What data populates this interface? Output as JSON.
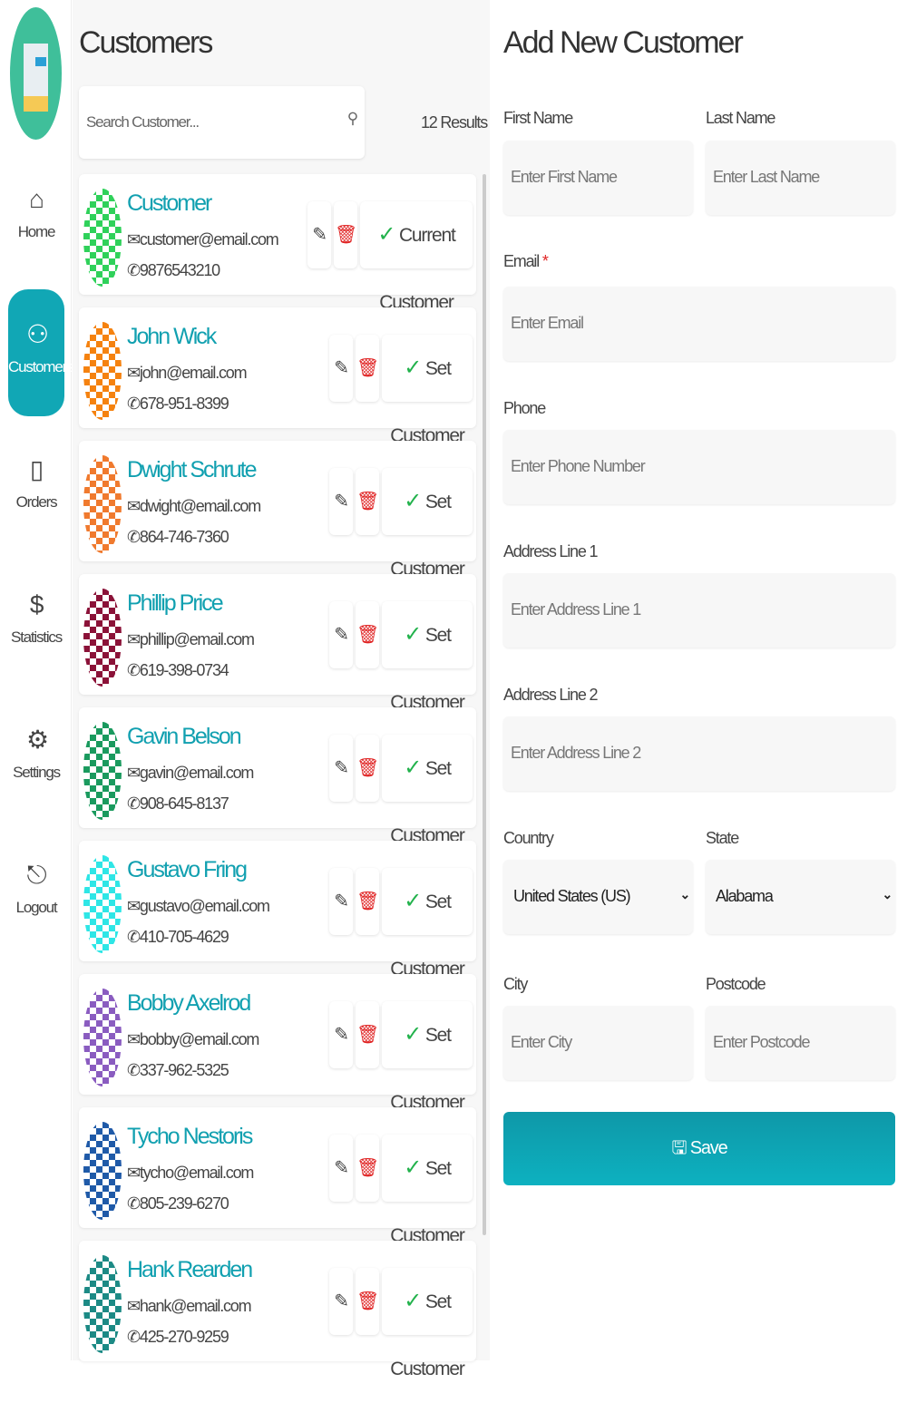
{
  "sidebar": {
    "items": [
      {
        "label": "Home",
        "icon": "home-icon"
      },
      {
        "label": "Customers",
        "icon": "users-icon",
        "active": true
      },
      {
        "label": "Orders",
        "icon": "clipboard-icon"
      },
      {
        "label": "Statistics",
        "icon": "dollar-icon"
      },
      {
        "label": "Settings",
        "icon": "gear-icon"
      },
      {
        "label": "Logout",
        "icon": "logout-icon"
      }
    ]
  },
  "customers": {
    "title": "Customers",
    "search_placeholder": "Search Customer...",
    "results": "12 Results",
    "list": [
      {
        "name": "Customer",
        "email": "customer@email.com",
        "phone": "9876543210",
        "action": "Current Customer",
        "color": "#2fd15a"
      },
      {
        "name": "John Wick",
        "email": "john@email.com",
        "phone": "678-951-8399",
        "action": "Set Customer",
        "color": "#f5820f"
      },
      {
        "name": "Dwight Schrute",
        "email": "dwight@email.com",
        "phone": "864-746-7360",
        "action": "Set Customer",
        "color": "#f07a2e"
      },
      {
        "name": "Phillip Price",
        "email": "phillip@email.com",
        "phone": "619-398-0734",
        "action": "Set Customer",
        "color": "#8b1238"
      },
      {
        "name": "Gavin Belson",
        "email": "gavin@email.com",
        "phone": "908-645-8137",
        "action": "Set Customer",
        "color": "#1a9a5e"
      },
      {
        "name": "Gustavo Fring",
        "email": "gustavo@email.com",
        "phone": "410-705-4629",
        "action": "Set Customer",
        "color": "#2ee6e6"
      },
      {
        "name": "Bobby Axelrod",
        "email": "bobby@email.com",
        "phone": "337-962-5325",
        "action": "Set Customer",
        "color": "#8a5cc0"
      },
      {
        "name": "Tycho Nestoris",
        "email": "tycho@email.com",
        "phone": "805-239-6270",
        "action": "Set Customer",
        "color": "#1f5aa8"
      },
      {
        "name": "Hank Rearden",
        "email": "hank@email.com",
        "phone": "425-270-9259",
        "action": "Set Customer",
        "color": "#1c8a85"
      }
    ]
  },
  "form": {
    "title": "Add New Customer",
    "first_name": {
      "label": "First Name",
      "placeholder": "Enter First Name"
    },
    "last_name": {
      "label": "Last Name",
      "placeholder": "Enter Last Name"
    },
    "email": {
      "label": "Email",
      "required": "*",
      "placeholder": "Enter Email"
    },
    "phone": {
      "label": "Phone",
      "placeholder": "Enter Phone Number"
    },
    "address1": {
      "label": "Address Line 1",
      "placeholder": "Enter Address Line 1"
    },
    "address2": {
      "label": "Address Line 2",
      "placeholder": "Enter Address Line 2"
    },
    "country": {
      "label": "Country",
      "value": "United States (US)"
    },
    "state": {
      "label": "State",
      "value": "Alabama"
    },
    "city": {
      "label": "City",
      "placeholder": "Enter City"
    },
    "postcode": {
      "label": "Postcode",
      "placeholder": "Enter Postcode"
    },
    "save_label": "Save"
  },
  "colors": {
    "accent": "#11a7b5",
    "delete": "#e02424",
    "check": "#22b24c"
  }
}
